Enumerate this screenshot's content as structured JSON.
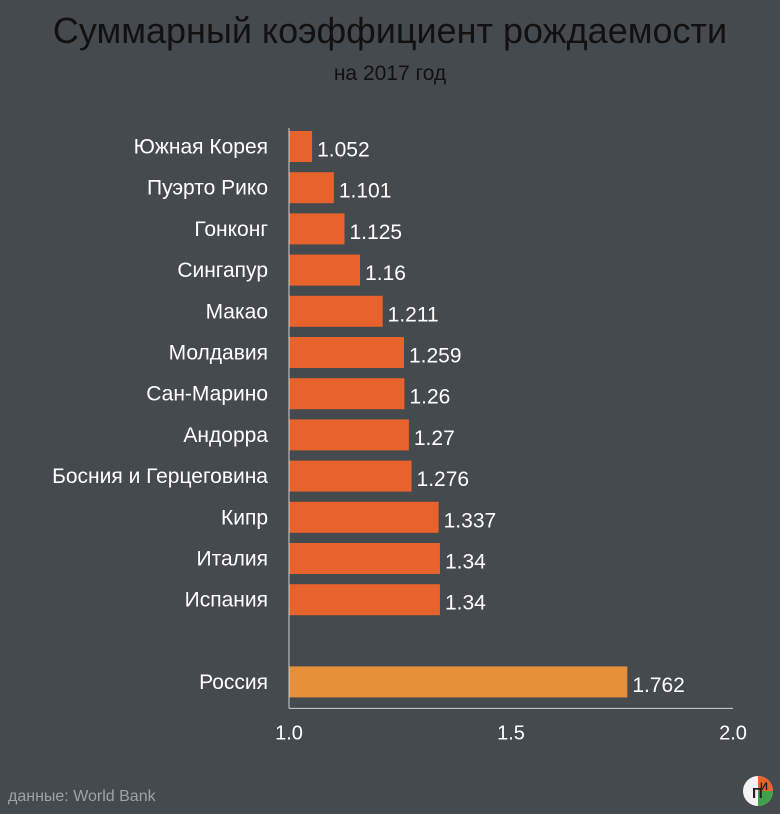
{
  "header": {
    "title": "Суммарный коэффициент рождаемости",
    "subtitle": "на 2017 год"
  },
  "footer": {
    "source": "данные: World Bank",
    "logo_text_1": "П",
    "logo_text_2": "И"
  },
  "colors": {
    "background": "#454a4e",
    "bar": "#e8622c",
    "highlight_bar": "#e6903a",
    "axis": "#cfd3d6",
    "label": "#ffffff",
    "title": "#111111"
  },
  "chart_data": {
    "type": "bar",
    "orientation": "horizontal",
    "categories": [
      "Южная Корея",
      "Пуэрто Рико",
      "Гонконг",
      "Сингапур",
      "Макао",
      "Молдавия",
      "Сан-Марино",
      "Андорра",
      "Босния и Герцеговина",
      "Кипр",
      "Италия",
      "Испания",
      "Россия"
    ],
    "values": [
      1.052,
      1.101,
      1.125,
      1.16,
      1.211,
      1.259,
      1.26,
      1.27,
      1.276,
      1.337,
      1.34,
      1.34,
      1.762
    ],
    "value_labels": [
      "1.052",
      "1.101",
      "1.125",
      "1.16",
      "1.211",
      "1.259",
      "1.26",
      "1.27",
      "1.276",
      "1.337",
      "1.34",
      "1.34",
      "1.762"
    ],
    "highlight": "Россия",
    "title": "Суммарный коэффициент рождаемости",
    "subtitle": "на 2017 год",
    "xlim": [
      1.0,
      2.0
    ],
    "xticks": [
      "1.0",
      "1.5",
      "2.0"
    ],
    "xlabel": "",
    "ylabel": "",
    "grid": false
  }
}
